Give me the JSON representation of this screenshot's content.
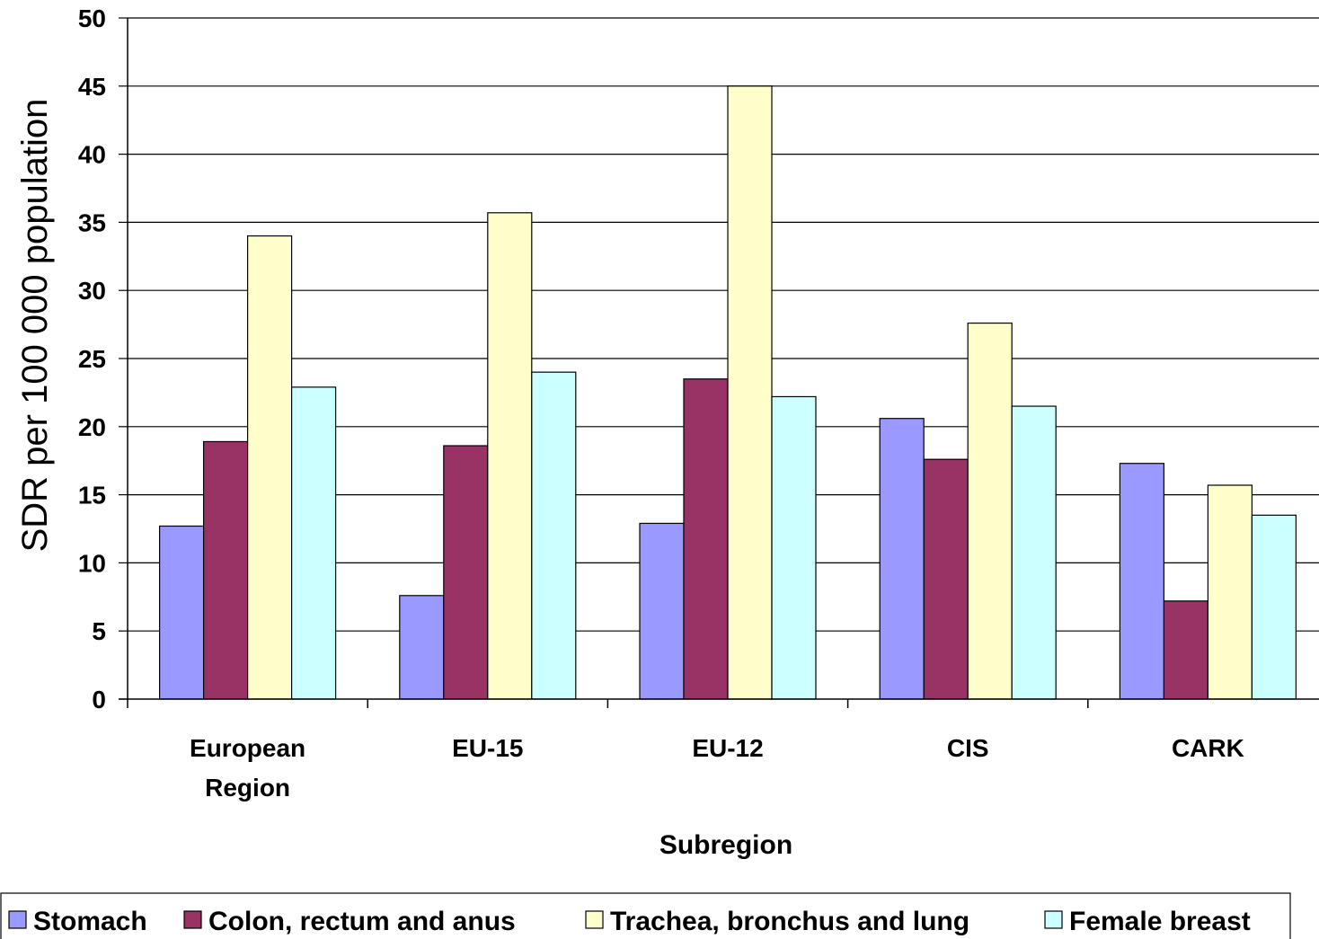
{
  "chart_data": {
    "type": "bar",
    "xlabel": "Subregion",
    "ylabel": "SDR per 100 000 population",
    "ylim": [
      0,
      50
    ],
    "y_ticks": [
      "0",
      "5",
      "10",
      "15",
      "20",
      "25",
      "30",
      "35",
      "40",
      "45",
      "50"
    ],
    "categories": [
      [
        "European",
        "Region"
      ],
      [
        "EU-15"
      ],
      [
        "EU-12"
      ],
      [
        "CIS"
      ],
      [
        "CARK"
      ]
    ],
    "grid": true,
    "legend_position": "bottom",
    "series": [
      {
        "name": "Stomach",
        "color": "#9999ff",
        "values": [
          12.7,
          7.6,
          12.9,
          20.6,
          17.3
        ]
      },
      {
        "name": "Colon, rectum and anus",
        "color": "#993366",
        "values": [
          18.9,
          18.6,
          23.5,
          17.6,
          7.2
        ]
      },
      {
        "name": "Trachea, bronchus and lung",
        "color": "#ffffcc",
        "values": [
          34.0,
          35.7,
          45.0,
          27.6,
          15.7
        ]
      },
      {
        "name": "Female breast",
        "color": "#ccffff",
        "values": [
          22.9,
          24.0,
          22.2,
          21.5,
          13.5
        ]
      }
    ]
  }
}
